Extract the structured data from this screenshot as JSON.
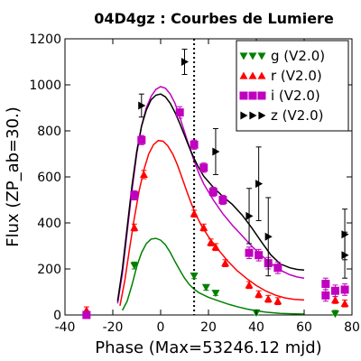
{
  "chart_data": {
    "type": "scatter",
    "title": "04D4gz : Courbes de Lumiere",
    "xlabel": "Phase (Max=53246.12 mjd)",
    "ylabel": "Flux (ZP_ab=30.)",
    "xlim": [
      -40,
      80
    ],
    "ylim": [
      0,
      1200
    ],
    "xticks": [
      -40,
      -20,
      0,
      20,
      40,
      60,
      80
    ],
    "xtick_labels": [
      "-40",
      "-20",
      "0",
      "20",
      "40",
      "60",
      "80"
    ],
    "yticks": [
      0,
      200,
      400,
      600,
      800,
      1000,
      1200
    ],
    "ytick_labels": [
      "0",
      "200",
      "400",
      "600",
      "800",
      "1000",
      "1200"
    ],
    "grid": false,
    "legend_position": "top-right",
    "max_phase_line": 14,
    "series": [
      {
        "name": "g (V2.0)",
        "color": "#008000",
        "marker": "triangle-down",
        "points": [
          {
            "x": -11,
            "y": 215,
            "err": 15
          },
          {
            "x": 14,
            "y": 170,
            "err": 12
          },
          {
            "x": 19,
            "y": 120,
            "err": 12
          },
          {
            "x": 23,
            "y": 95,
            "err": 10
          },
          {
            "x": 40,
            "y": 10,
            "err": 12
          },
          {
            "x": 73,
            "y": 5,
            "err": 15
          }
        ],
        "curve": [
          [
            -16,
            20
          ],
          [
            -14,
            60
          ],
          [
            -12,
            130
          ],
          [
            -10,
            210
          ],
          [
            -8,
            270
          ],
          [
            -6,
            310
          ],
          [
            -4,
            330
          ],
          [
            -2,
            333
          ],
          [
            0,
            325
          ],
          [
            2,
            305
          ],
          [
            4,
            272
          ],
          [
            6,
            232
          ],
          [
            8,
            195
          ],
          [
            10,
            160
          ],
          [
            12,
            132
          ],
          [
            14,
            112
          ],
          [
            16,
            97
          ],
          [
            20,
            77
          ],
          [
            24,
            62
          ],
          [
            28,
            48
          ],
          [
            32,
            36
          ],
          [
            36,
            26
          ],
          [
            40,
            18
          ],
          [
            44,
            12
          ],
          [
            50,
            7
          ],
          [
            56,
            5
          ],
          [
            60,
            4
          ]
        ]
      },
      {
        "name": "r (V2.0)",
        "color": "#ff0000",
        "marker": "triangle-up",
        "points": [
          {
            "x": -31,
            "y": 20,
            "err": 15
          },
          {
            "x": -11,
            "y": 380,
            "err": 15
          },
          {
            "x": -7,
            "y": 610,
            "err": 18
          },
          {
            "x": 14,
            "y": 440,
            "err": 15
          },
          {
            "x": 18,
            "y": 380,
            "err": 15
          },
          {
            "x": 21,
            "y": 315,
            "err": 15
          },
          {
            "x": 23,
            "y": 295,
            "err": 15
          },
          {
            "x": 27,
            "y": 225,
            "err": 15
          },
          {
            "x": 37,
            "y": 130,
            "err": 15
          },
          {
            "x": 41,
            "y": 90,
            "err": 15
          },
          {
            "x": 45,
            "y": 70,
            "err": 15
          },
          {
            "x": 49,
            "y": 60,
            "err": 15
          },
          {
            "x": 73,
            "y": 65,
            "err": 15
          },
          {
            "x": 77,
            "y": 50,
            "err": 15
          }
        ],
        "curve": [
          [
            -17,
            40
          ],
          [
            -15,
            150
          ],
          [
            -13,
            290
          ],
          [
            -11,
            420
          ],
          [
            -9,
            540
          ],
          [
            -7,
            630
          ],
          [
            -5,
            700
          ],
          [
            -3,
            740
          ],
          [
            -1,
            758
          ],
          [
            1,
            755
          ],
          [
            3,
            735
          ],
          [
            5,
            700
          ],
          [
            7,
            652
          ],
          [
            9,
            595
          ],
          [
            11,
            535
          ],
          [
            13,
            480
          ],
          [
            15,
            430
          ],
          [
            17,
            390
          ],
          [
            20,
            340
          ],
          [
            24,
            285
          ],
          [
            28,
            235
          ],
          [
            32,
            192
          ],
          [
            36,
            158
          ],
          [
            40,
            128
          ],
          [
            44,
            104
          ],
          [
            48,
            86
          ],
          [
            52,
            74
          ],
          [
            56,
            68
          ],
          [
            60,
            65
          ]
        ]
      },
      {
        "name": "i (V2.0)",
        "color": "#bf00bf",
        "marker": "square",
        "points": [
          {
            "x": -31,
            "y": 0,
            "err": 12
          },
          {
            "x": -11,
            "y": 520,
            "err": 20
          },
          {
            "x": -8,
            "y": 760,
            "err": 20
          },
          {
            "x": 8,
            "y": 880,
            "err": 25
          },
          {
            "x": 14,
            "y": 740,
            "err": 20
          },
          {
            "x": 18,
            "y": 640,
            "err": 20
          },
          {
            "x": 22,
            "y": 535,
            "err": 20
          },
          {
            "x": 26,
            "y": 500,
            "err": 20
          },
          {
            "x": 37,
            "y": 270,
            "err": 25
          },
          {
            "x": 41,
            "y": 260,
            "err": 25
          },
          {
            "x": 45,
            "y": 225,
            "err": 25
          },
          {
            "x": 49,
            "y": 205,
            "err": 25
          },
          {
            "x": 69,
            "y": 135,
            "err": 25
          },
          {
            "x": 69,
            "y": 85,
            "err": 25
          },
          {
            "x": 73,
            "y": 105,
            "err": 25
          },
          {
            "x": 77,
            "y": 110,
            "err": 25
          }
        ],
        "curve": [
          [
            -18,
            50
          ],
          [
            -16,
            180
          ],
          [
            -14,
            360
          ],
          [
            -12,
            540
          ],
          [
            -10,
            700
          ],
          [
            -8,
            820
          ],
          [
            -6,
            900
          ],
          [
            -4,
            950
          ],
          [
            -2,
            980
          ],
          [
            0,
            992
          ],
          [
            2,
            985
          ],
          [
            4,
            960
          ],
          [
            6,
            920
          ],
          [
            8,
            860
          ],
          [
            10,
            795
          ],
          [
            12,
            730
          ],
          [
            14,
            670
          ],
          [
            16,
            615
          ],
          [
            18,
            570
          ],
          [
            22,
            500
          ],
          [
            26,
            440
          ],
          [
            30,
            390
          ],
          [
            34,
            345
          ],
          [
            38,
            300
          ],
          [
            42,
            260
          ],
          [
            46,
            225
          ],
          [
            50,
            195
          ],
          [
            54,
            175
          ],
          [
            57,
            165
          ],
          [
            60,
            160
          ]
        ]
      },
      {
        "name": "z (V2.0)",
        "color": "#000000",
        "marker": "triangle-right",
        "points": [
          {
            "x": -8,
            "y": 910,
            "err": 50
          },
          {
            "x": 10,
            "y": 1100,
            "err": 55
          },
          {
            "x": 23,
            "y": 710,
            "err": 100
          },
          {
            "x": 37,
            "y": 430,
            "err": 120
          },
          {
            "x": 41,
            "y": 570,
            "err": 160
          },
          {
            "x": 45,
            "y": 340,
            "err": 170
          },
          {
            "x": 77,
            "y": 350,
            "err": 110
          },
          {
            "x": 77,
            "y": 260,
            "err": 100
          }
        ],
        "curve": [
          [
            -18,
            60
          ],
          [
            -16,
            200
          ],
          [
            -14,
            380
          ],
          [
            -12,
            560
          ],
          [
            -10,
            710
          ],
          [
            -8,
            820
          ],
          [
            -6,
            890
          ],
          [
            -4,
            935
          ],
          [
            -2,
            955
          ],
          [
            0,
            960
          ],
          [
            2,
            948
          ],
          [
            4,
            920
          ],
          [
            6,
            880
          ],
          [
            8,
            832
          ],
          [
            10,
            780
          ],
          [
            12,
            728
          ],
          [
            14,
            680
          ],
          [
            16,
            638
          ],
          [
            18,
            603
          ],
          [
            22,
            555
          ],
          [
            26,
            515
          ],
          [
            30,
            480
          ],
          [
            34,
            435
          ],
          [
            38,
            380
          ],
          [
            42,
            320
          ],
          [
            46,
            262
          ],
          [
            50,
            222
          ],
          [
            54,
            205
          ],
          [
            57,
            198
          ],
          [
            60,
            195
          ]
        ]
      }
    ]
  }
}
